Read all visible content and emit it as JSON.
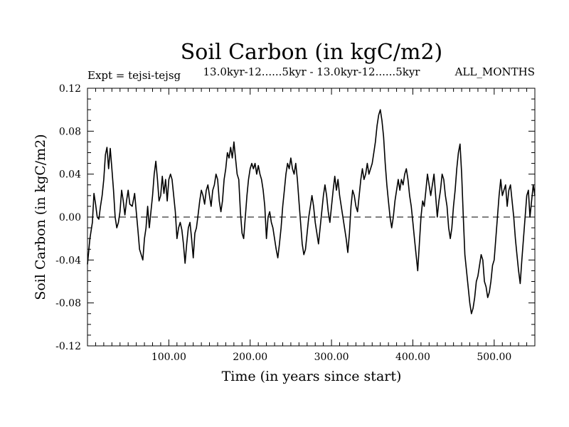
{
  "chart_data": {
    "type": "line",
    "title": "Soil Carbon (in kgC/m2)",
    "subtitle": "13.0kyr-12......5kyr - 13.0kyr-12......5kyr",
    "left_label": "Expt = tejsi-tejsg",
    "right_label": "ALL_MONTHS",
    "xlabel": "Time (in years since start)",
    "ylabel": "Soil Carbon (in kgC/m2)",
    "xlim": [
      0,
      550
    ],
    "ylim": [
      -0.12,
      0.12
    ],
    "x_ticks": [
      100,
      200,
      300,
      400,
      500
    ],
    "x_tick_labels": [
      "100.00",
      "200.00",
      "300.00",
      "400.00",
      "500.00"
    ],
    "y_ticks": [
      -0.12,
      -0.08,
      -0.04,
      0.0,
      0.04,
      0.08,
      0.12
    ],
    "y_tick_labels": [
      "-0.12",
      "-0.08",
      "-0.04",
      "0.00",
      "0.04",
      "0.08",
      "0.12"
    ],
    "reference_line": {
      "y": 0.0,
      "style": "dashed"
    },
    "series": [
      {
        "name": "Soil Carbon",
        "points": [
          [
            0,
            -0.044
          ],
          [
            3,
            -0.02
          ],
          [
            6,
            -0.005
          ],
          [
            8,
            0.022
          ],
          [
            10,
            0.012
          ],
          [
            12,
            0.0
          ],
          [
            14,
            -0.002
          ],
          [
            16,
            0.01
          ],
          [
            18,
            0.02
          ],
          [
            20,
            0.035
          ],
          [
            22,
            0.058
          ],
          [
            24,
            0.065
          ],
          [
            26,
            0.045
          ],
          [
            28,
            0.064
          ],
          [
            30,
            0.045
          ],
          [
            32,
            0.025
          ],
          [
            34,
            0.0
          ],
          [
            36,
            -0.01
          ],
          [
            38,
            -0.005
          ],
          [
            40,
            0.005
          ],
          [
            42,
            0.025
          ],
          [
            44,
            0.015
          ],
          [
            46,
            0.002
          ],
          [
            48,
            0.015
          ],
          [
            50,
            0.025
          ],
          [
            52,
            0.012
          ],
          [
            55,
            0.01
          ],
          [
            58,
            0.022
          ],
          [
            60,
            0.005
          ],
          [
            62,
            -0.012
          ],
          [
            64,
            -0.03
          ],
          [
            66,
            -0.035
          ],
          [
            68,
            -0.04
          ],
          [
            70,
            -0.02
          ],
          [
            72,
            -0.01
          ],
          [
            74,
            0.01
          ],
          [
            76,
            -0.01
          ],
          [
            78,
            0.005
          ],
          [
            80,
            0.02
          ],
          [
            82,
            0.04
          ],
          [
            84,
            0.052
          ],
          [
            86,
            0.035
          ],
          [
            88,
            0.015
          ],
          [
            90,
            0.02
          ],
          [
            92,
            0.038
          ],
          [
            94,
            0.022
          ],
          [
            96,
            0.035
          ],
          [
            98,
            0.015
          ],
          [
            100,
            0.035
          ],
          [
            102,
            0.04
          ],
          [
            104,
            0.035
          ],
          [
            106,
            0.02
          ],
          [
            108,
            0.005
          ],
          [
            110,
            -0.02
          ],
          [
            112,
            -0.01
          ],
          [
            114,
            -0.005
          ],
          [
            116,
            -0.012
          ],
          [
            118,
            -0.025
          ],
          [
            120,
            -0.043
          ],
          [
            122,
            -0.025
          ],
          [
            124,
            -0.01
          ],
          [
            126,
            -0.005
          ],
          [
            128,
            -0.02
          ],
          [
            130,
            -0.038
          ],
          [
            132,
            -0.015
          ],
          [
            134,
            -0.01
          ],
          [
            136,
            0.002
          ],
          [
            138,
            0.015
          ],
          [
            140,
            0.025
          ],
          [
            142,
            0.02
          ],
          [
            144,
            0.012
          ],
          [
            146,
            0.025
          ],
          [
            148,
            0.03
          ],
          [
            150,
            0.02
          ],
          [
            152,
            0.01
          ],
          [
            154,
            0.025
          ],
          [
            156,
            0.03
          ],
          [
            158,
            0.04
          ],
          [
            160,
            0.035
          ],
          [
            162,
            0.015
          ],
          [
            164,
            0.005
          ],
          [
            166,
            0.015
          ],
          [
            168,
            0.035
          ],
          [
            170,
            0.045
          ],
          [
            172,
            0.06
          ],
          [
            174,
            0.055
          ],
          [
            176,
            0.065
          ],
          [
            178,
            0.055
          ],
          [
            180,
            0.07
          ],
          [
            182,
            0.055
          ],
          [
            184,
            0.04
          ],
          [
            186,
            0.035
          ],
          [
            188,
            0.005
          ],
          [
            190,
            -0.015
          ],
          [
            192,
            -0.02
          ],
          [
            194,
            0.0
          ],
          [
            196,
            0.02
          ],
          [
            198,
            0.035
          ],
          [
            200,
            0.045
          ],
          [
            202,
            0.05
          ],
          [
            204,
            0.045
          ],
          [
            206,
            0.05
          ],
          [
            208,
            0.04
          ],
          [
            210,
            0.048
          ],
          [
            212,
            0.04
          ],
          [
            214,
            0.035
          ],
          [
            216,
            0.025
          ],
          [
            218,
            0.01
          ],
          [
            220,
            -0.02
          ],
          [
            222,
            0.0
          ],
          [
            224,
            0.005
          ],
          [
            226,
            -0.005
          ],
          [
            228,
            -0.01
          ],
          [
            230,
            -0.02
          ],
          [
            232,
            -0.03
          ],
          [
            234,
            -0.038
          ],
          [
            236,
            -0.025
          ],
          [
            238,
            -0.01
          ],
          [
            240,
            0.01
          ],
          [
            242,
            0.025
          ],
          [
            244,
            0.04
          ],
          [
            246,
            0.05
          ],
          [
            248,
            0.045
          ],
          [
            250,
            0.055
          ],
          [
            252,
            0.045
          ],
          [
            254,
            0.04
          ],
          [
            256,
            0.05
          ],
          [
            258,
            0.035
          ],
          [
            260,
            0.015
          ],
          [
            262,
            -0.005
          ],
          [
            264,
            -0.025
          ],
          [
            266,
            -0.035
          ],
          [
            268,
            -0.03
          ],
          [
            270,
            -0.015
          ],
          [
            272,
            0.0
          ],
          [
            274,
            0.01
          ],
          [
            276,
            0.02
          ],
          [
            278,
            0.01
          ],
          [
            280,
            -0.005
          ],
          [
            282,
            -0.015
          ],
          [
            284,
            -0.025
          ],
          [
            286,
            -0.01
          ],
          [
            288,
            0.005
          ],
          [
            290,
            0.02
          ],
          [
            292,
            0.03
          ],
          [
            294,
            0.02
          ],
          [
            296,
            0.005
          ],
          [
            298,
            -0.005
          ],
          [
            300,
            0.01
          ],
          [
            302,
            0.025
          ],
          [
            304,
            0.038
          ],
          [
            306,
            0.025
          ],
          [
            308,
            0.035
          ],
          [
            310,
            0.02
          ],
          [
            312,
            0.01
          ],
          [
            314,
            0.0
          ],
          [
            316,
            -0.01
          ],
          [
            318,
            -0.02
          ],
          [
            320,
            -0.033
          ],
          [
            322,
            -0.015
          ],
          [
            324,
            0.01
          ],
          [
            326,
            0.025
          ],
          [
            328,
            0.02
          ],
          [
            330,
            0.01
          ],
          [
            332,
            0.005
          ],
          [
            334,
            0.02
          ],
          [
            336,
            0.035
          ],
          [
            338,
            0.045
          ],
          [
            340,
            0.035
          ],
          [
            342,
            0.04
          ],
          [
            344,
            0.05
          ],
          [
            346,
            0.04
          ],
          [
            348,
            0.045
          ],
          [
            350,
            0.05
          ],
          [
            352,
            0.06
          ],
          [
            354,
            0.07
          ],
          [
            356,
            0.085
          ],
          [
            358,
            0.095
          ],
          [
            360,
            0.1
          ],
          [
            362,
            0.09
          ],
          [
            364,
            0.075
          ],
          [
            366,
            0.05
          ],
          [
            368,
            0.03
          ],
          [
            370,
            0.015
          ],
          [
            372,
            0.0
          ],
          [
            374,
            -0.01
          ],
          [
            376,
            0.0
          ],
          [
            378,
            0.015
          ],
          [
            380,
            0.025
          ],
          [
            382,
            0.035
          ],
          [
            384,
            0.025
          ],
          [
            386,
            0.035
          ],
          [
            388,
            0.03
          ],
          [
            390,
            0.04
          ],
          [
            392,
            0.045
          ],
          [
            394,
            0.035
          ],
          [
            396,
            0.02
          ],
          [
            398,
            0.01
          ],
          [
            400,
            -0.005
          ],
          [
            402,
            -0.02
          ],
          [
            404,
            -0.035
          ],
          [
            406,
            -0.05
          ],
          [
            408,
            -0.025
          ],
          [
            410,
            0.0
          ],
          [
            412,
            0.015
          ],
          [
            414,
            0.01
          ],
          [
            416,
            0.025
          ],
          [
            418,
            0.04
          ],
          [
            420,
            0.03
          ],
          [
            422,
            0.02
          ],
          [
            424,
            0.03
          ],
          [
            426,
            0.04
          ],
          [
            428,
            0.02
          ],
          [
            430,
            0.0
          ],
          [
            432,
            0.015
          ],
          [
            434,
            0.025
          ],
          [
            436,
            0.04
          ],
          [
            438,
            0.035
          ],
          [
            440,
            0.02
          ],
          [
            442,
            0.01
          ],
          [
            444,
            -0.01
          ],
          [
            446,
            -0.02
          ],
          [
            448,
            -0.01
          ],
          [
            450,
            0.01
          ],
          [
            452,
            0.025
          ],
          [
            454,
            0.045
          ],
          [
            456,
            0.06
          ],
          [
            458,
            0.068
          ],
          [
            460,
            0.04
          ],
          [
            462,
            0.0
          ],
          [
            464,
            -0.035
          ],
          [
            466,
            -0.05
          ],
          [
            468,
            -0.065
          ],
          [
            470,
            -0.08
          ],
          [
            472,
            -0.09
          ],
          [
            474,
            -0.085
          ],
          [
            476,
            -0.075
          ],
          [
            478,
            -0.06
          ],
          [
            480,
            -0.055
          ],
          [
            482,
            -0.045
          ],
          [
            484,
            -0.035
          ],
          [
            486,
            -0.04
          ],
          [
            488,
            -0.06
          ],
          [
            490,
            -0.065
          ],
          [
            492,
            -0.075
          ],
          [
            494,
            -0.07
          ],
          [
            496,
            -0.06
          ],
          [
            498,
            -0.045
          ],
          [
            500,
            -0.04
          ],
          [
            502,
            -0.02
          ],
          [
            504,
            0.0
          ],
          [
            506,
            0.02
          ],
          [
            508,
            0.035
          ],
          [
            510,
            0.02
          ],
          [
            512,
            0.025
          ],
          [
            514,
            0.03
          ],
          [
            516,
            0.01
          ],
          [
            518,
            0.025
          ],
          [
            520,
            0.03
          ],
          [
            522,
            0.015
          ],
          [
            524,
            0.0
          ],
          [
            526,
            -0.02
          ],
          [
            528,
            -0.035
          ],
          [
            530,
            -0.05
          ],
          [
            532,
            -0.062
          ],
          [
            534,
            -0.04
          ],
          [
            536,
            -0.02
          ],
          [
            538,
            0.0
          ],
          [
            540,
            0.02
          ],
          [
            542,
            0.025
          ],
          [
            544,
            0.0
          ],
          [
            546,
            0.015
          ],
          [
            548,
            0.03
          ],
          [
            550,
            0.02
          ]
        ]
      }
    ]
  }
}
